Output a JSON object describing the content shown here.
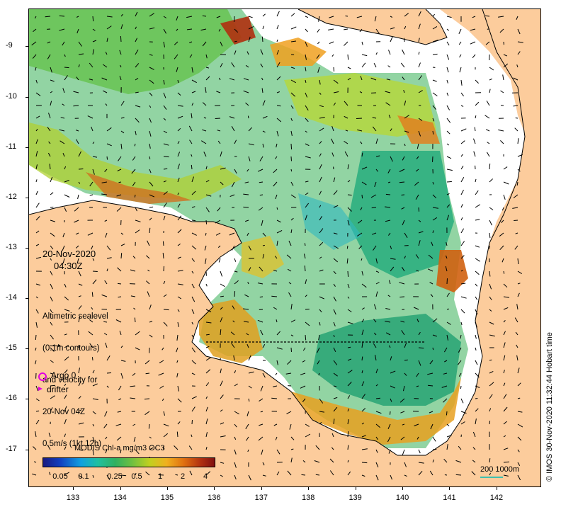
{
  "map": {
    "y_ticks": [
      "-9",
      "-10",
      "-11",
      "-12",
      "-13",
      "-14",
      "-15",
      "-16",
      "-17"
    ],
    "x_ticks": [
      "133",
      "134",
      "135",
      "136",
      "137",
      "138",
      "139",
      "140",
      "141",
      "142"
    ],
    "y_range_deg": [
      -17.75,
      -8.25
    ],
    "x_range_deg": [
      132.05,
      142.95
    ],
    "land_color": "#fccc9c",
    "water_color": "#ffffff"
  },
  "overlay": {
    "date": "20-Nov-2020",
    "time": "04:30Z",
    "info_lines": [
      "Altimetric sealevel",
      "(0.1m contours)",
      "and velocity for",
      "20-Nov 04Z",
      "0.5m/s (1kt 12h)"
    ],
    "argo_label": "Argo 0",
    "drifter_label": "drifter",
    "argo_color": "#e000e0"
  },
  "colorbar": {
    "title": "MODIS Chl-a mg/m3 OC3",
    "labels": [
      "0.05",
      "0.1",
      "0.25",
      "0.5",
      "1",
      "2",
      "4"
    ]
  },
  "scale_bar": {
    "label": "200  1000m",
    "color": "#40c0b0"
  },
  "credit": "© IMOS 30-Nov-2020 11:32:44 Hobart time"
}
